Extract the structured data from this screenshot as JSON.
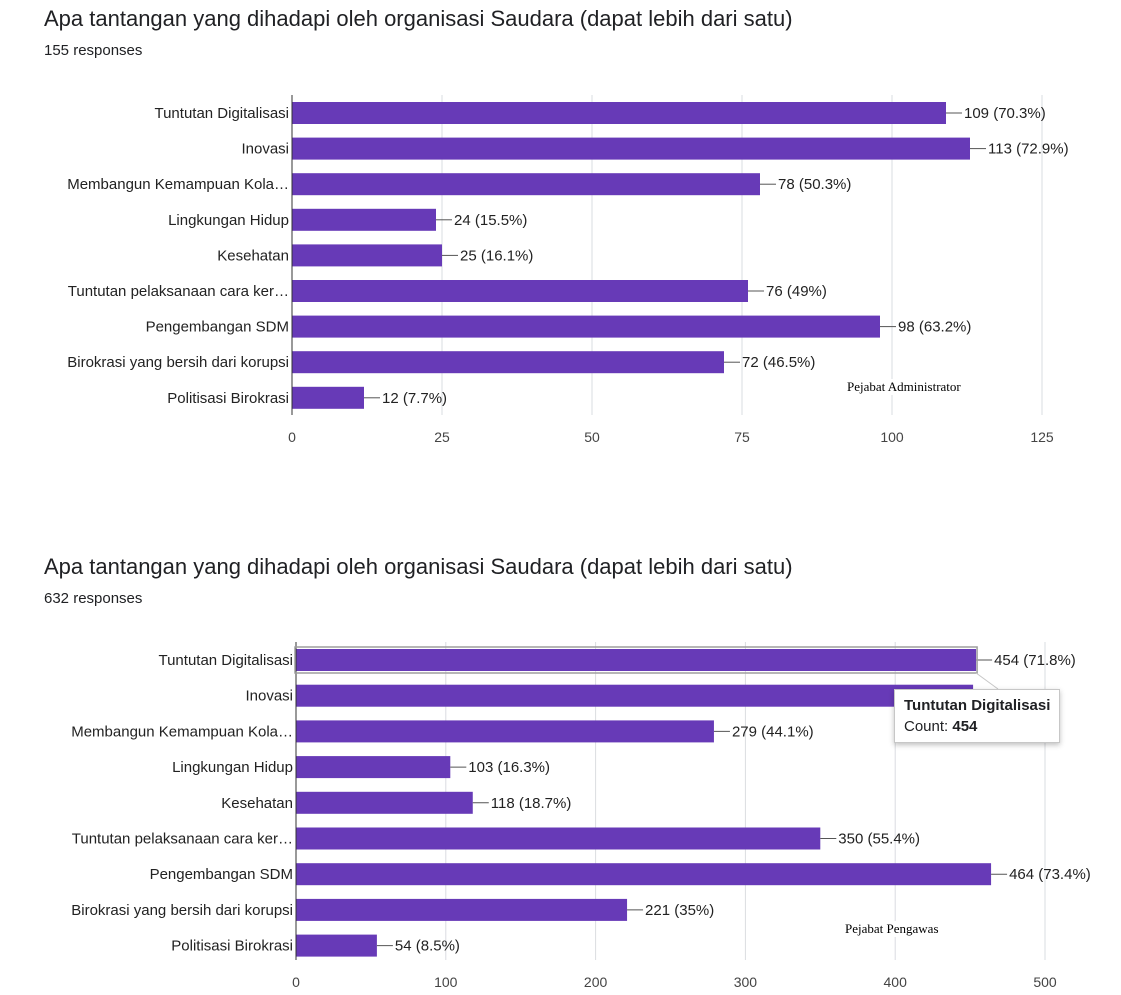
{
  "chart_data": [
    {
      "type": "bar",
      "orientation": "horizontal",
      "title": "Apa tantangan yang dihadapi oleh organisasi Saudara (dapat lebih dari satu)",
      "subtitle": "155 responses",
      "annotation": "Pejabat Administrator",
      "categories": [
        "Tuntutan Digitalisasi",
        "Inovasi",
        "Membangun Kemampuan Kola…",
        "Lingkungan Hidup",
        "Kesehatan",
        "Tuntutan pelaksanaan cara ker…",
        "Pengembangan SDM",
        "Birokrasi yang bersih dari korupsi",
        "Politisasi Birokrasi"
      ],
      "values": [
        109,
        113,
        78,
        24,
        25,
        76,
        98,
        72,
        12
      ],
      "data_labels": [
        "109 (70.3%)",
        "113 (72.9%)",
        "78 (50.3%)",
        "24 (15.5%)",
        "25 (16.1%)",
        "76 (49%)",
        "98 (63.2%)",
        "72 (46.5%)",
        "12 (7.7%)"
      ],
      "xlim": [
        0,
        125
      ],
      "ticks": [
        "0",
        "25",
        "50",
        "75",
        "100",
        "125"
      ],
      "grid": true,
      "bar_color": "#673ab7"
    },
    {
      "type": "bar",
      "orientation": "horizontal",
      "title": "Apa tantangan yang dihadapi oleh organisasi Saudara (dapat lebih dari satu)",
      "subtitle": "632 responses",
      "annotation": "Pejabat Pengawas",
      "categories": [
        "Tuntutan Digitalisasi",
        "Inovasi",
        "Membangun Kemampuan Kola…",
        "Lingkungan Hidup",
        "Kesehatan",
        "Tuntutan pelaksanaan cara ker…",
        "Pengembangan SDM",
        "Birokrasi yang bersih dari korupsi",
        "Politisasi Birokrasi"
      ],
      "values": [
        454,
        452,
        279,
        103,
        118,
        350,
        464,
        221,
        54
      ],
      "data_labels": [
        "454 (71.8%)",
        "",
        "279 (44.1%)",
        "103 (16.3%)",
        "118 (18.7%)",
        "350 (55.4%)",
        "464 (73.4%)",
        "221 (35%)",
        "54 (8.5%)"
      ],
      "xlim": [
        0,
        500
      ],
      "ticks": [
        "0",
        "100",
        "200",
        "300",
        "400",
        "500"
      ],
      "grid": true,
      "bar_color": "#673ab7",
      "tooltip": {
        "title": "Tuntutan Digitalisasi",
        "count_label": "Count:",
        "count_value": "454"
      }
    }
  ]
}
